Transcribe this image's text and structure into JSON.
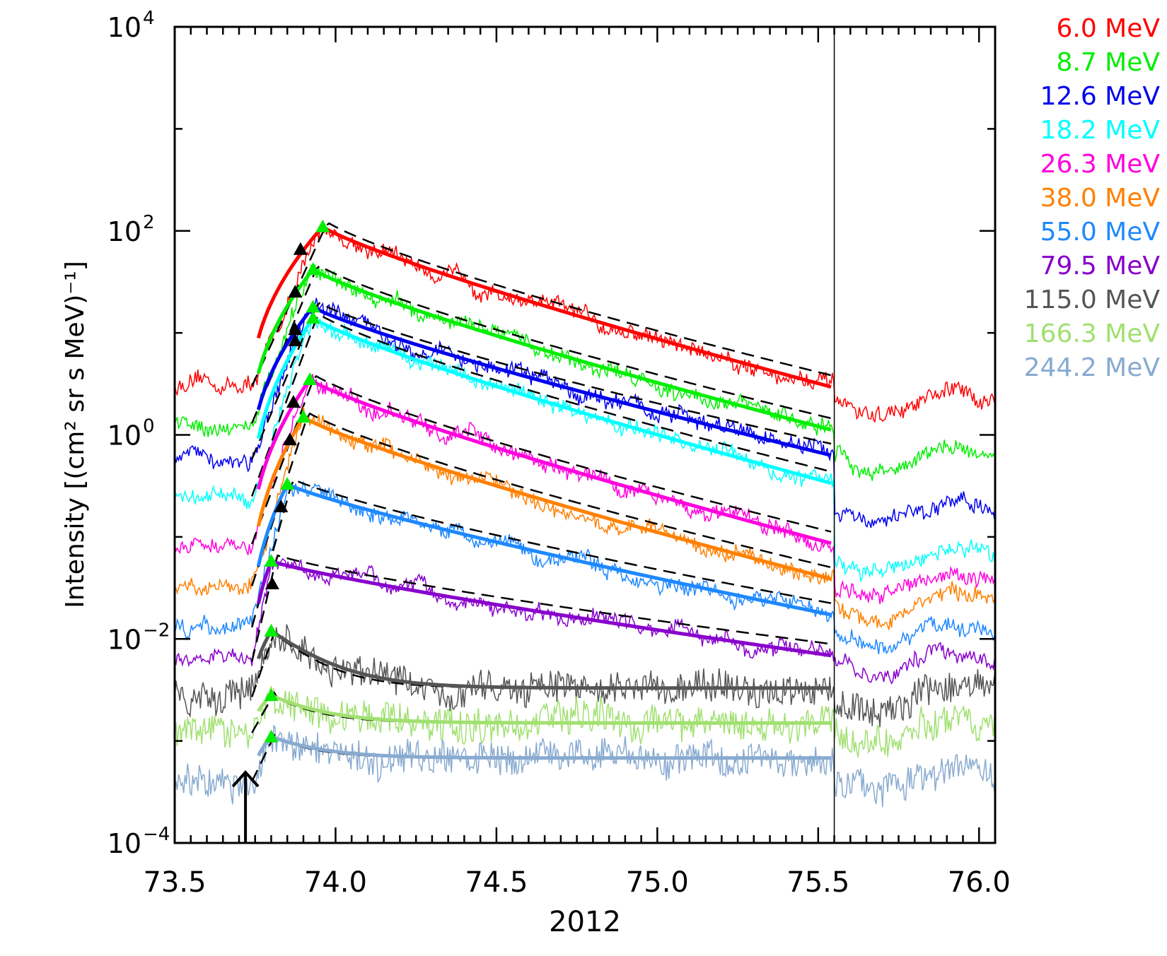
{
  "chart_data": {
    "type": "line",
    "xlabel": "2012",
    "ylabel": "Intensity [(cm² sr s MeV)⁻¹]",
    "xlim": [
      73.5,
      76.05
    ],
    "ylim": [
      0.0001,
      10000
    ],
    "yscale": "log",
    "x_ticks": [
      "73.5",
      "74.0",
      "74.5",
      "75.0",
      "75.5",
      "76.0"
    ],
    "x_tick_values": [
      73.5,
      74.0,
      74.5,
      75.0,
      75.5,
      76.0
    ],
    "y_ticks": [
      {
        "base": "10",
        "exp": "4",
        "value": 10000
      },
      {
        "base": "10",
        "exp": "2",
        "value": 100
      },
      {
        "base": "10",
        "exp": "0",
        "value": 1
      },
      {
        "base": "10",
        "exp": "−2",
        "value": 0.01
      },
      {
        "base": "10",
        "exp": "−4",
        "value": 0.0001
      }
    ],
    "vertical_line_x": 75.55,
    "onset_arrow_x": 73.72,
    "fit_end_x": 75.55,
    "legend_position": "right, outside plot",
    "series": [
      {
        "name": "6.0  MeV",
        "color": "#ff0000",
        "bg": 3.0,
        "peak": 110,
        "t_peak": 73.96,
        "fit_end": 2.9,
        "fit_base": 0.9,
        "post_level": 2.0,
        "flat": false
      },
      {
        "name": "8.7  MeV",
        "color": "#00ee00",
        "bg": 1.3,
        "peak": 42,
        "t_peak": 73.93,
        "fit_end": 1.1,
        "fit_base": 0.35,
        "post_level": 0.6,
        "flat": false
      },
      {
        "name": "12.6  MeV",
        "color": "#0000ee",
        "bg": 0.58,
        "peak": 18,
        "t_peak": 73.93,
        "fit_end": 0.62,
        "fit_base": 0.2,
        "post_level": 0.17,
        "flat": false
      },
      {
        "name": "18.2  MeV",
        "color": "#00ffff",
        "bg": 0.25,
        "peak": 14,
        "t_peak": 73.93,
        "fit_end": 0.33,
        "fit_base": 0.1,
        "post_level": 0.06,
        "flat": false
      },
      {
        "name": "26.3  MeV",
        "color": "#ff00dd",
        "bg": 0.085,
        "peak": 3.5,
        "t_peak": 73.92,
        "fit_end": 0.085,
        "fit_base": 0.025,
        "post_level": 0.035,
        "flat": false
      },
      {
        "name": "38.0  MeV",
        "color": "#ff8000",
        "bg": 0.033,
        "peak": 1.5,
        "t_peak": 73.9,
        "fit_end": 0.038,
        "fit_base": 0.012,
        "post_level": 0.02,
        "flat": false
      },
      {
        "name": "55.0  MeV",
        "color": "#1e88ff",
        "bg": 0.013,
        "peak": 0.33,
        "t_peak": 73.85,
        "fit_end": 0.017,
        "fit_base": 0.006,
        "post_level": 0.011,
        "flat": false
      },
      {
        "name": "79.5  MeV",
        "color": "#8800cc",
        "bg": 0.006,
        "peak": 0.058,
        "t_peak": 73.8,
        "fit_end": 0.0068,
        "fit_base": 0.0055,
        "post_level": 0.006,
        "flat": false
      },
      {
        "name": "115.0  MeV",
        "color": "#555555",
        "bg": 0.0027,
        "peak": 0.012,
        "t_peak": 73.8,
        "fit_end": 0.0034,
        "fit_base": 0.0033,
        "post_level": 0.0028,
        "flat": true
      },
      {
        "name": "166.3  MeV",
        "color": "#a0e070",
        "bg": 0.0012,
        "peak": 0.0028,
        "t_peak": 73.8,
        "fit_end": 0.0015,
        "fit_base": 0.0015,
        "post_level": 0.0013,
        "flat": true
      },
      {
        "name": "244.2  MeV",
        "color": "#88aad0",
        "bg": 0.0004,
        "peak": 0.0011,
        "t_peak": 73.8,
        "fit_end": 0.00068,
        "fit_base": 0.00068,
        "post_level": 0.0004,
        "flat": true
      }
    ]
  }
}
